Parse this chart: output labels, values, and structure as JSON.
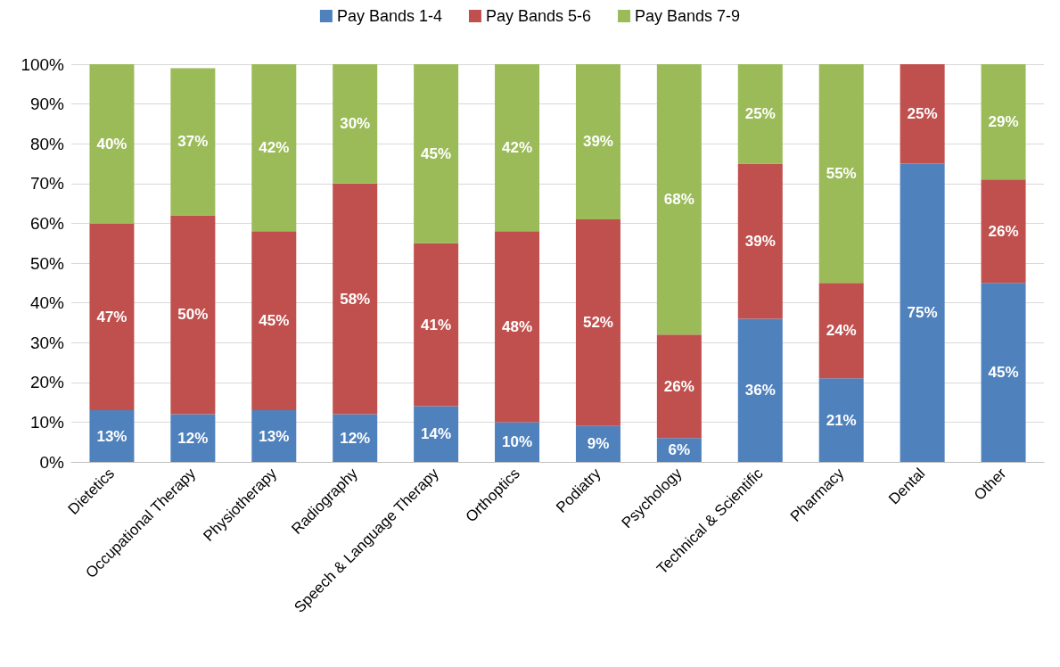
{
  "chart_data": {
    "type": "bar",
    "stacked": true,
    "legend": "top",
    "grid": "y",
    "categories": [
      "Dietetics",
      "Occupational Therapy",
      "Physiotherapy",
      "Radiography",
      "Speech & Language Therapy",
      "Orthoptics",
      "Podiatry",
      "Psychology",
      "Technical & Scientific",
      "Pharmacy",
      "Dental",
      "Other"
    ],
    "ylim": [
      0,
      100
    ],
    "yticks": [
      {
        "value": 0,
        "label": "0%"
      },
      {
        "value": 10,
        "label": "10%"
      },
      {
        "value": 20,
        "label": "20%"
      },
      {
        "value": 30,
        "label": "30%"
      },
      {
        "value": 40,
        "label": "40%"
      },
      {
        "value": 50,
        "label": "50%"
      },
      {
        "value": 60,
        "label": "60%"
      },
      {
        "value": 70,
        "label": "70%"
      },
      {
        "value": 80,
        "label": "80%"
      },
      {
        "value": 90,
        "label": "90%"
      },
      {
        "value": 100,
        "label": "100%"
      }
    ],
    "series": [
      {
        "name": "Pay Bands 1-4",
        "color": "#4f81bd",
        "values": [
          13,
          12,
          13,
          12,
          14,
          10,
          9,
          6,
          36,
          21,
          75,
          45
        ],
        "value_labels": [
          "13%",
          "12%",
          "13%",
          "12%",
          "14%",
          "10%",
          "9%",
          "6%",
          "36%",
          "21%",
          "75%",
          "45%"
        ]
      },
      {
        "name": "Pay Bands 5-6",
        "color": "#c0504d",
        "values": [
          47,
          50,
          45,
          58,
          41,
          48,
          52,
          26,
          39,
          24,
          25,
          26
        ],
        "value_labels": [
          "47%",
          "50%",
          "45%",
          "58%",
          "41%",
          "48%",
          "52%",
          "26%",
          "39%",
          "24%",
          "25%",
          "26%"
        ]
      },
      {
        "name": "Pay Bands 7-9",
        "color": "#9bbb59",
        "values": [
          40,
          37,
          42,
          30,
          45,
          42,
          39,
          68,
          25,
          55,
          0,
          29
        ],
        "value_labels": [
          "40%",
          "37%",
          "42%",
          "30%",
          "45%",
          "42%",
          "39%",
          "68%",
          "25%",
          "55%",
          null,
          "29%"
        ]
      }
    ]
  }
}
